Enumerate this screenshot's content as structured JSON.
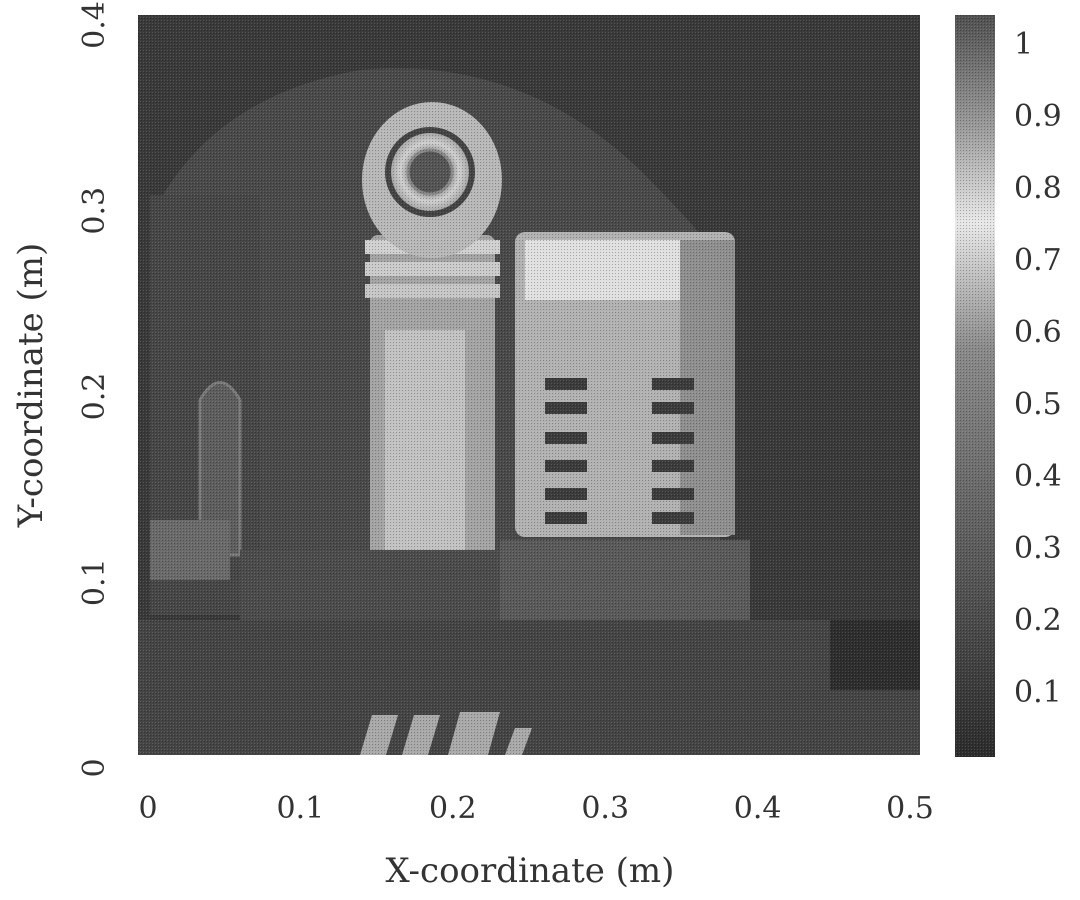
{
  "chart_data": {
    "type": "heatmap",
    "title": "",
    "xlabel": "X-coordinate (m)",
    "ylabel": "Y-coordinate (m)",
    "xlim": [
      0,
      0.5
    ],
    "ylim": [
      0,
      0.4
    ],
    "x_ticks": [
      "0",
      "0.1",
      "0.2",
      "0.3",
      "0.4",
      "0.5"
    ],
    "y_ticks": [
      "0",
      "0.1",
      "0.2",
      "0.3",
      "0.4"
    ],
    "colorbar": {
      "range": [
        0.05,
        1.0
      ],
      "ticks": [
        "0.1",
        "0.2",
        "0.3",
        "0.4",
        "0.5",
        "0.6",
        "0.7",
        "0.8",
        "0.9",
        "1"
      ],
      "colormap": "grayscale"
    },
    "grid": false,
    "colors": {
      "low": "#2a2a2a",
      "high": "#f4f4f4",
      "background": "#3a3a3a"
    }
  }
}
